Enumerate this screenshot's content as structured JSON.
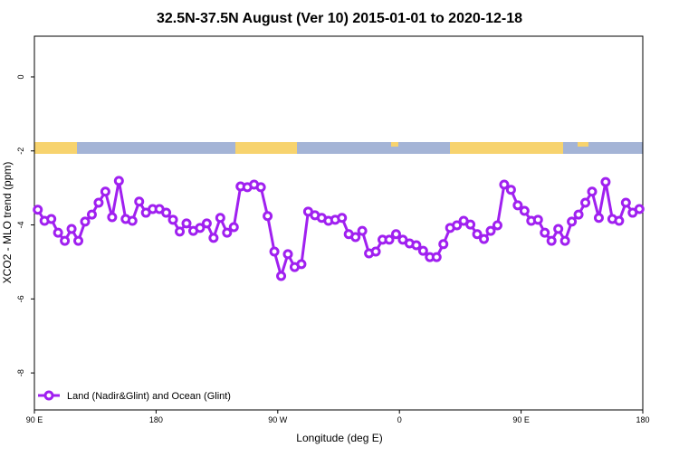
{
  "chart_data": {
    "type": "line",
    "title": "32.5N-37.5N August (Ver 10)   2015-01-01 to 2020-12-18",
    "x_label": "Longitude (deg E)",
    "y_label": "XCO2 - MLO trend (ppm)",
    "xlim": [
      90,
      540
    ],
    "ylim": [
      -9.0,
      1.1
    ],
    "xticks": [
      {
        "value": 90,
        "label": "90 E"
      },
      {
        "value": 180,
        "label": "180"
      },
      {
        "value": 270,
        "label": "90 W"
      },
      {
        "value": 360,
        "label": "0"
      },
      {
        "value": 450,
        "label": "90 E"
      },
      {
        "value": 540,
        "label": "180"
      }
    ],
    "yticks": [
      0,
      -2,
      -4,
      -6,
      -8
    ],
    "legend": "bottom-left",
    "x": [
      92.5,
      97.5,
      102.5,
      107.5,
      112.5,
      117.5,
      122.5,
      127.5,
      132.5,
      137.5,
      142.5,
      147.5,
      152.5,
      157.5,
      162.5,
      167.5,
      172.5,
      177.5,
      182.5,
      187.5,
      192.5,
      197.5,
      202.5,
      207.5,
      212.5,
      217.5,
      222.5,
      227.5,
      232.5,
      237.5,
      242.5,
      247.5,
      252.5,
      257.5,
      262.5,
      267.5,
      272.5,
      277.5,
      282.5,
      287.5,
      292.5,
      297.5,
      302.5,
      307.5,
      312.5,
      317.5,
      322.5,
      327.5,
      332.5,
      337.5,
      342.5,
      347.5,
      352.5,
      357.5,
      362.5,
      367.5,
      372.5,
      377.5,
      382.5,
      387.5,
      392.5,
      397.5,
      402.5,
      407.5,
      412.5,
      417.5,
      422.5,
      427.5,
      432.5,
      437.5,
      442.5,
      447.5,
      452.5,
      457.5,
      462.5,
      467.5,
      472.5,
      477.5,
      482.5,
      487.5,
      492.5,
      497.5,
      502.5,
      507.5,
      512.5,
      517.5,
      522.5,
      527.5,
      532.5,
      537.5
    ],
    "series": [
      {
        "name": "Land (Nadir&Glint) and Ocean (Glint)",
        "color": "#a020f0",
        "values": [
          -3.59,
          -3.89,
          -3.84,
          -4.21,
          -4.43,
          -4.11,
          -4.43,
          -3.91,
          -3.72,
          -3.4,
          -3.1,
          -3.79,
          -2.81,
          -3.84,
          -3.89,
          -3.37,
          -3.67,
          -3.57,
          -3.57,
          -3.67,
          -3.86,
          -4.18,
          -3.96,
          -4.16,
          -4.08,
          -3.96,
          -4.35,
          -3.81,
          -4.21,
          -4.06,
          -2.96,
          -2.98,
          -2.91,
          -2.98,
          -3.76,
          -4.72,
          -5.38,
          -4.79,
          -5.14,
          -5.06,
          -3.64,
          -3.74,
          -3.81,
          -3.89,
          -3.86,
          -3.81,
          -4.25,
          -4.33,
          -4.16,
          -4.77,
          -4.72,
          -4.4,
          -4.4,
          -4.25,
          -4.4,
          -4.5,
          -4.55,
          -4.7,
          -4.87,
          -4.87,
          -4.52,
          -4.08,
          -4.01,
          -3.89,
          -3.99,
          -4.25,
          -4.38,
          -4.16,
          -4.01,
          -2.91,
          -3.05,
          -3.47,
          -3.62,
          -3.89,
          -3.86,
          -4.21,
          -4.43,
          -4.11,
          -4.43,
          -3.91,
          -3.72,
          -3.4,
          -3.1,
          -3.81,
          -2.84,
          -3.84,
          -3.89,
          -3.4,
          -3.67,
          -3.57
        ]
      }
    ]
  }
}
